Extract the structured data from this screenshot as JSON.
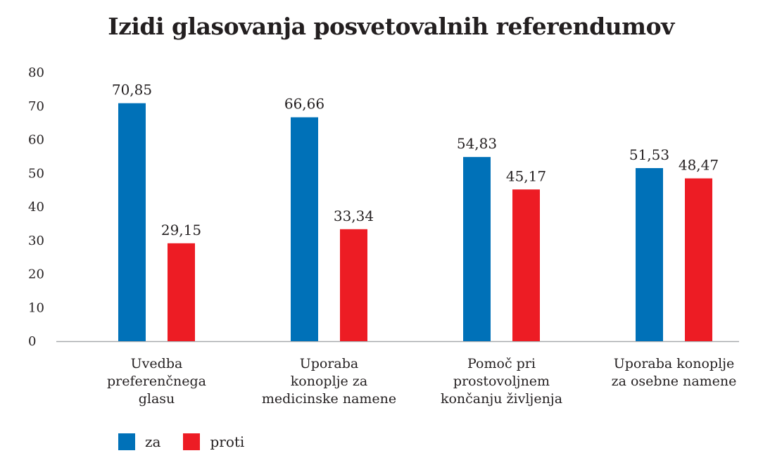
{
  "chart_data": {
    "type": "bar",
    "title": "Izidi glasovanja posvetovalnih referendumov",
    "xlabel": "",
    "ylabel": "",
    "ylim": [
      0,
      80
    ],
    "yticks": [
      0,
      10,
      20,
      30,
      40,
      50,
      60,
      70,
      80
    ],
    "grid": false,
    "legend_position": "bottom-left",
    "categories": [
      [
        "Uvedba",
        "preferenčnega",
        "glasu"
      ],
      [
        "Uporaba",
        "konoplje za",
        "medicinske namene"
      ],
      [
        "Pomoč pri",
        "prostovoljnem",
        "končanju življenja"
      ],
      [
        "Uporaba konoplje",
        "za osebne namene"
      ]
    ],
    "series": [
      {
        "name": "za",
        "color": "#0071b8",
        "values": [
          70.85,
          66.66,
          54.83,
          51.53
        ],
        "labels": [
          "70,85",
          "66,66",
          "54,83",
          "51,53"
        ]
      },
      {
        "name": "proti",
        "color": "#ed1c24",
        "values": [
          29.15,
          33.34,
          45.17,
          48.47
        ],
        "labels": [
          "29,15",
          "33,34",
          "45,17",
          "48,47"
        ]
      }
    ]
  }
}
